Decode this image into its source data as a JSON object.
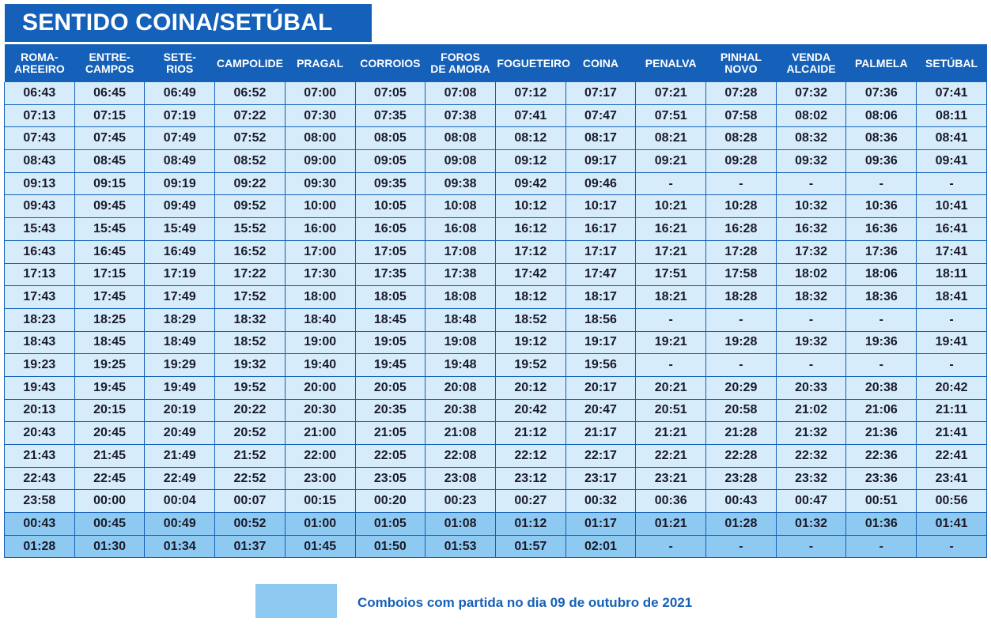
{
  "title": "SENTIDO COINA/SETÚBAL",
  "columns": [
    [
      "ROMA-",
      "AREEIRO"
    ],
    [
      "ENTRE-",
      "CAMPOS"
    ],
    [
      "SETE-",
      "RIOS"
    ],
    [
      "CAMPOLIDE"
    ],
    [
      "PRAGAL"
    ],
    [
      "CORROIOS"
    ],
    [
      "FOROS",
      "DE AMORA"
    ],
    [
      "FOGUETEIRO"
    ],
    [
      "COINA"
    ],
    [
      "PENALVA"
    ],
    [
      "PINHAL",
      "NOVO"
    ],
    [
      "VENDA",
      "ALCAIDE"
    ],
    [
      "PALMELA"
    ],
    [
      "SETÚBAL"
    ]
  ],
  "rows": [
    {
      "highlight": false,
      "times": [
        "06:43",
        "06:45",
        "06:49",
        "06:52",
        "07:00",
        "07:05",
        "07:08",
        "07:12",
        "07:17",
        "07:21",
        "07:28",
        "07:32",
        "07:36",
        "07:41"
      ]
    },
    {
      "highlight": false,
      "times": [
        "07:13",
        "07:15",
        "07:19",
        "07:22",
        "07:30",
        "07:35",
        "07:38",
        "07:41",
        "07:47",
        "07:51",
        "07:58",
        "08:02",
        "08:06",
        "08:11"
      ]
    },
    {
      "highlight": false,
      "times": [
        "07:43",
        "07:45",
        "07:49",
        "07:52",
        "08:00",
        "08:05",
        "08:08",
        "08:12",
        "08:17",
        "08:21",
        "08:28",
        "08:32",
        "08:36",
        "08:41"
      ]
    },
    {
      "highlight": false,
      "times": [
        "08:43",
        "08:45",
        "08:49",
        "08:52",
        "09:00",
        "09:05",
        "09:08",
        "09:12",
        "09:17",
        "09:21",
        "09:28",
        "09:32",
        "09:36",
        "09:41"
      ]
    },
    {
      "highlight": false,
      "times": [
        "09:13",
        "09:15",
        "09:19",
        "09:22",
        "09:30",
        "09:35",
        "09:38",
        "09:42",
        "09:46",
        "-",
        "-",
        "-",
        "-",
        "-"
      ]
    },
    {
      "highlight": false,
      "times": [
        "09:43",
        "09:45",
        "09:49",
        "09:52",
        "10:00",
        "10:05",
        "10:08",
        "10:12",
        "10:17",
        "10:21",
        "10:28",
        "10:32",
        "10:36",
        "10:41"
      ]
    },
    {
      "highlight": false,
      "times": [
        "15:43",
        "15:45",
        "15:49",
        "15:52",
        "16:00",
        "16:05",
        "16:08",
        "16:12",
        "16:17",
        "16:21",
        "16:28",
        "16:32",
        "16:36",
        "16:41"
      ]
    },
    {
      "highlight": false,
      "times": [
        "16:43",
        "16:45",
        "16:49",
        "16:52",
        "17:00",
        "17:05",
        "17:08",
        "17:12",
        "17:17",
        "17:21",
        "17:28",
        "17:32",
        "17:36",
        "17:41"
      ]
    },
    {
      "highlight": false,
      "times": [
        "17:13",
        "17:15",
        "17:19",
        "17:22",
        "17:30",
        "17:35",
        "17:38",
        "17:42",
        "17:47",
        "17:51",
        "17:58",
        "18:02",
        "18:06",
        "18:11"
      ]
    },
    {
      "highlight": false,
      "times": [
        "17:43",
        "17:45",
        "17:49",
        "17:52",
        "18:00",
        "18:05",
        "18:08",
        "18:12",
        "18:17",
        "18:21",
        "18:28",
        "18:32",
        "18:36",
        "18:41"
      ]
    },
    {
      "highlight": false,
      "times": [
        "18:23",
        "18:25",
        "18:29",
        "18:32",
        "18:40",
        "18:45",
        "18:48",
        "18:52",
        "18:56",
        "-",
        "-",
        "-",
        "-",
        "-"
      ]
    },
    {
      "highlight": false,
      "times": [
        "18:43",
        "18:45",
        "18:49",
        "18:52",
        "19:00",
        "19:05",
        "19:08",
        "19:12",
        "19:17",
        "19:21",
        "19:28",
        "19:32",
        "19:36",
        "19:41"
      ]
    },
    {
      "highlight": false,
      "times": [
        "19:23",
        "19:25",
        "19:29",
        "19:32",
        "19:40",
        "19:45",
        "19:48",
        "19:52",
        "19:56",
        "-",
        "-",
        "-",
        "-",
        "-"
      ]
    },
    {
      "highlight": false,
      "times": [
        "19:43",
        "19:45",
        "19:49",
        "19:52",
        "20:00",
        "20:05",
        "20:08",
        "20:12",
        "20:17",
        "20:21",
        "20:29",
        "20:33",
        "20:38",
        "20:42"
      ]
    },
    {
      "highlight": false,
      "times": [
        "20:13",
        "20:15",
        "20:19",
        "20:22",
        "20:30",
        "20:35",
        "20:38",
        "20:42",
        "20:47",
        "20:51",
        "20:58",
        "21:02",
        "21:06",
        "21:11"
      ]
    },
    {
      "highlight": false,
      "times": [
        "20:43",
        "20:45",
        "20:49",
        "20:52",
        "21:00",
        "21:05",
        "21:08",
        "21:12",
        "21:17",
        "21:21",
        "21:28",
        "21:32",
        "21:36",
        "21:41"
      ]
    },
    {
      "highlight": false,
      "times": [
        "21:43",
        "21:45",
        "21:49",
        "21:52",
        "22:00",
        "22:05",
        "22:08",
        "22:12",
        "22:17",
        "22:21",
        "22:28",
        "22:32",
        "22:36",
        "22:41"
      ]
    },
    {
      "highlight": false,
      "times": [
        "22:43",
        "22:45",
        "22:49",
        "22:52",
        "23:00",
        "23:05",
        "23:08",
        "23:12",
        "23:17",
        "23:21",
        "23:28",
        "23:32",
        "23:36",
        "23:41"
      ]
    },
    {
      "highlight": false,
      "times": [
        "23:58",
        "00:00",
        "00:04",
        "00:07",
        "00:15",
        "00:20",
        "00:23",
        "00:27",
        "00:32",
        "00:36",
        "00:43",
        "00:47",
        "00:51",
        "00:56"
      ]
    },
    {
      "highlight": true,
      "times": [
        "00:43",
        "00:45",
        "00:49",
        "00:52",
        "01:00",
        "01:05",
        "01:08",
        "01:12",
        "01:17",
        "01:21",
        "01:28",
        "01:32",
        "01:36",
        "01:41"
      ]
    },
    {
      "highlight": true,
      "times": [
        "01:28",
        "01:30",
        "01:34",
        "01:37",
        "01:45",
        "01:50",
        "01:53",
        "01:57",
        "02:01",
        "-",
        "-",
        "-",
        "-",
        "-"
      ]
    }
  ],
  "legend": {
    "text": "Comboios com partida no dia 09 de outubro de 2021"
  },
  "colors": {
    "header": "#1560b8",
    "row_normal": "#d6ecfb",
    "row_highlight": "#8ec9f1"
  }
}
